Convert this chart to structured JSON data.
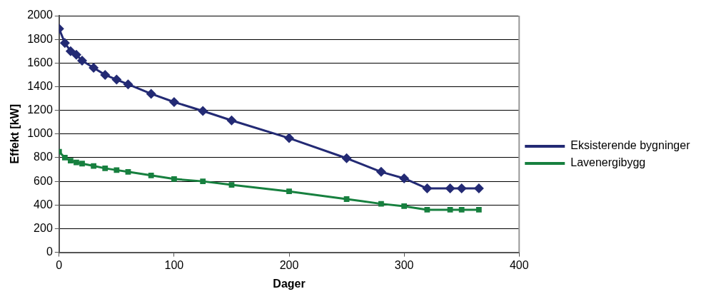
{
  "chart_data": {
    "type": "line",
    "xlabel": "Dager",
    "ylabel": "Effekt [kW]",
    "x": [
      0,
      5,
      10,
      15,
      20,
      30,
      40,
      50,
      60,
      80,
      100,
      125,
      150,
      200,
      250,
      280,
      300,
      320,
      340,
      350,
      365
    ],
    "series": [
      {
        "name": "Eksisterende bygninger",
        "color": "#232a74",
        "marker": "diamond",
        "values": [
          1890,
          1770,
          1700,
          1670,
          1620,
          1560,
          1500,
          1460,
          1420,
          1340,
          1270,
          1195,
          1115,
          965,
          795,
          680,
          625,
          540,
          540,
          540,
          540
        ]
      },
      {
        "name": "Lavenergibygg",
        "color": "#17803f",
        "marker": "square",
        "values": [
          850,
          800,
          775,
          760,
          750,
          730,
          710,
          695,
          680,
          650,
          620,
          600,
          570,
          515,
          450,
          410,
          390,
          360,
          360,
          360,
          360
        ]
      }
    ],
    "xlim": [
      0,
      400
    ],
    "xticks": [
      0,
      100,
      200,
      300,
      400
    ],
    "ylim": [
      0,
      2000
    ],
    "yticks": [
      0,
      200,
      400,
      600,
      800,
      1000,
      1200,
      1400,
      1600,
      1800,
      2000
    ],
    "grid": "y",
    "legend": "right",
    "line_style": "solid"
  }
}
